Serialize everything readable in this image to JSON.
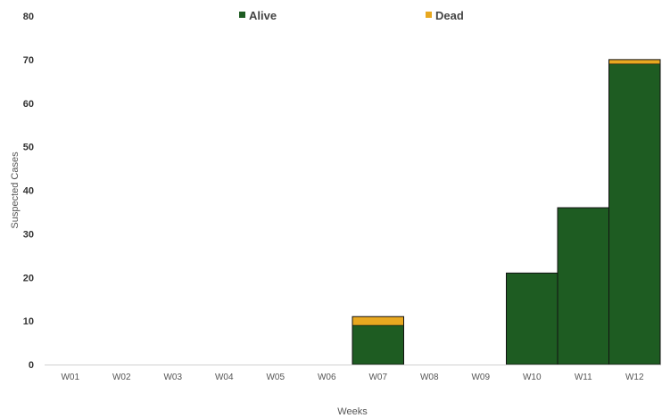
{
  "chart_data": {
    "type": "bar",
    "stacked": true,
    "title": "",
    "xlabel": "Weeks",
    "ylabel": "Suspected Cases",
    "categories": [
      "W01",
      "W02",
      "W03",
      "W04",
      "W05",
      "W06",
      "W07",
      "W08",
      "W09",
      "W10",
      "W11",
      "W12"
    ],
    "series": [
      {
        "name": "Alive",
        "color": "#1e5c22",
        "values": [
          0,
          0,
          0,
          0,
          0,
          0,
          9,
          0,
          0,
          21,
          36,
          69
        ]
      },
      {
        "name": "Dead",
        "color": "#e8a820",
        "values": [
          0,
          0,
          0,
          0,
          0,
          0,
          2,
          0,
          0,
          0,
          0,
          1
        ]
      }
    ],
    "ylim": [
      0,
      80
    ],
    "yticks": [
      "0",
      "10",
      "20",
      "30",
      "40",
      "50",
      "60",
      "70",
      "80"
    ],
    "grid": false,
    "legend_position": "top"
  }
}
